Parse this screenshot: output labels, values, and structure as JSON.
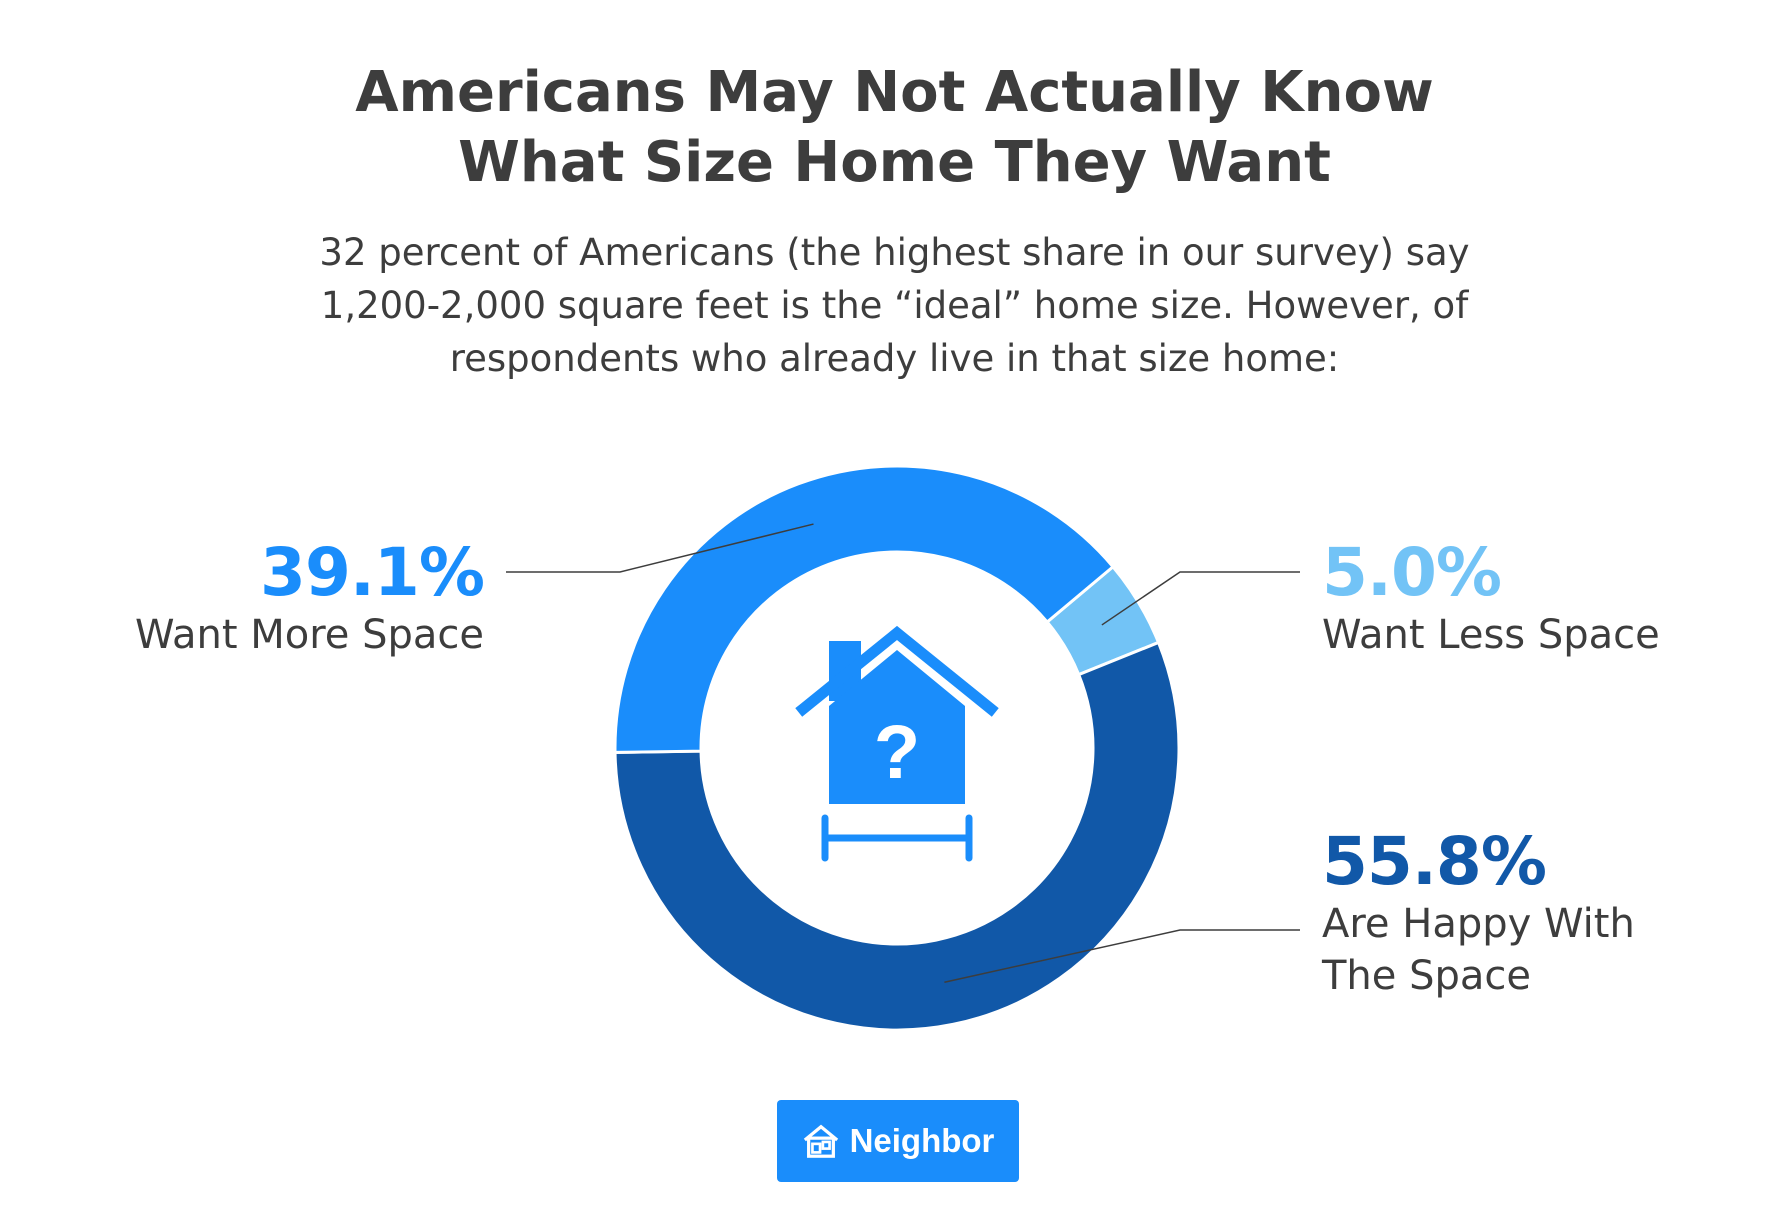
{
  "chart_data": {
    "type": "pie",
    "title_lines": [
      "Americans May Not Actually Know",
      "What Size Home They Want"
    ],
    "subtitle_lines": [
      "32 percent of Americans (the highest share in our survey) say",
      "1,200-2,000 square feet is the “ideal” home size. However, of",
      "respondents who already live in that size home:"
    ],
    "slices": [
      {
        "label_lines": [
          "Want Less Space"
        ],
        "value": 5.0,
        "value_label": "5.0%",
        "color": "#72c3f6"
      },
      {
        "label_lines": [
          "Are Happy With",
          "The Space"
        ],
        "value": 55.8,
        "value_label": "55.8%",
        "color": "#1158a8"
      },
      {
        "label_lines": [
          "Want More Space"
        ],
        "value": 39.1,
        "value_label": "39.1%",
        "color": "#1a8dfb"
      }
    ],
    "center_icon": "house-question-icon",
    "donut": true
  },
  "branding": {
    "logo_text": "Neighbor",
    "logo_icon": "neighbor-house-icon",
    "badge_color": "#1a8dfb"
  }
}
